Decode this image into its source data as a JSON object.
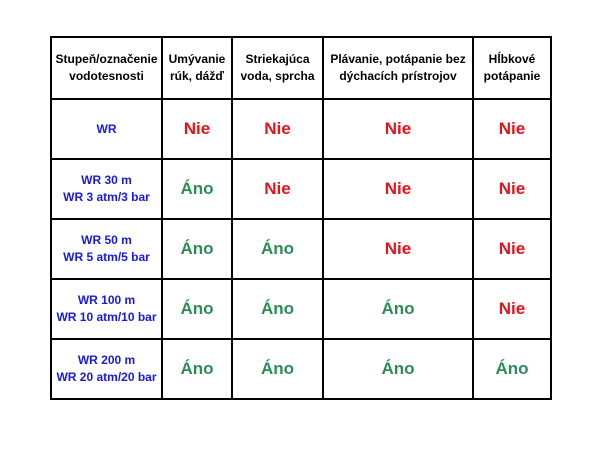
{
  "colors": {
    "yes": "#2e8b57",
    "no": "#e3141b",
    "label": "#1a1adb"
  },
  "headers": [
    [
      "Stupeň/označenie",
      "vodotesnosti"
    ],
    [
      "Umývanie",
      "rúk, dážď"
    ],
    [
      "Striekajúca",
      "voda, sprcha"
    ],
    [
      "Plávanie, potápanie bez",
      "dýchacích prístrojov"
    ],
    [
      "Hĺbkové",
      "potápanie"
    ]
  ],
  "rows": [
    {
      "label": [
        "WR"
      ],
      "values": [
        "Nie",
        "Nie",
        "Nie",
        "Nie"
      ]
    },
    {
      "label": [
        "WR 30 m",
        "WR 3 atm/3 bar"
      ],
      "values": [
        "Áno",
        "Nie",
        "Nie",
        "Nie"
      ]
    },
    {
      "label": [
        "WR 50 m",
        "WR 5 atm/5 bar"
      ],
      "values": [
        "Áno",
        "Áno",
        "Nie",
        "Nie"
      ]
    },
    {
      "label": [
        "WR 100 m",
        "WR 10 atm/10 bar"
      ],
      "values": [
        "Áno",
        "Áno",
        "Áno",
        "Nie"
      ]
    },
    {
      "label": [
        "WR 200 m",
        "WR 20 atm/20 bar"
      ],
      "values": [
        "Áno",
        "Áno",
        "Áno",
        "Áno"
      ]
    }
  ]
}
